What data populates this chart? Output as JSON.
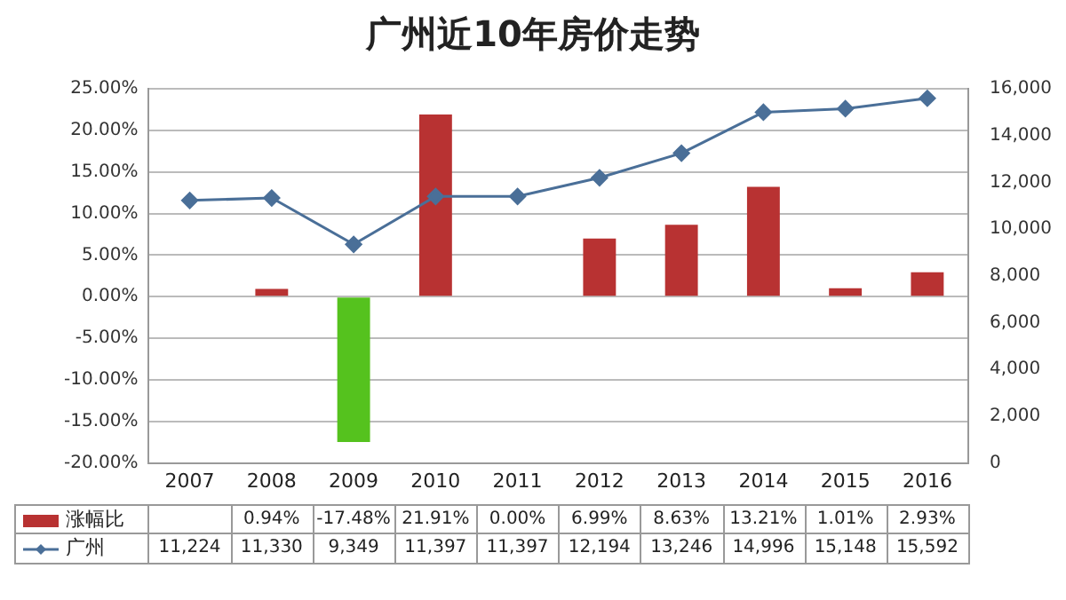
{
  "chart_data": {
    "type": "bar",
    "title": "广州近10年房价走势",
    "categories": [
      "2007",
      "2008",
      "2009",
      "2010",
      "2011",
      "2012",
      "2013",
      "2014",
      "2015",
      "2016"
    ],
    "series": [
      {
        "name": "涨幅比",
        "color": "#b83232",
        "colors": [
          "#b83232",
          "#b83232",
          "#55c21e",
          "#b83232",
          "#b83232",
          "#b83232",
          "#b83232",
          "#b83232",
          "#b83232",
          "#b83232"
        ],
        "values": [
          null,
          0.94,
          -17.48,
          21.91,
          0.0,
          6.99,
          8.63,
          13.21,
          1.01,
          2.93
        ],
        "value_labels": [
          null,
          "0.94%",
          "-17.48%",
          "21.91%",
          "0.00%",
          "6.99%",
          "8.63%",
          "13.21%",
          "1.01%",
          "2.93%"
        ]
      },
      {
        "name": "广州",
        "type": "line",
        "axis": "y2",
        "color": "#4a6f98",
        "values": [
          11224,
          11330,
          9349,
          11397,
          11397,
          12194,
          13246,
          14996,
          15148,
          15592
        ],
        "value_labels": [
          "11,224",
          "11,330",
          "9,349",
          "11,397",
          "11,397",
          "12,194",
          "13,246",
          "14,996",
          "15,148",
          "15,592"
        ]
      }
    ],
    "ylim": [
      -20,
      25
    ],
    "yticks": [
      {
        "value": -20,
        "label": "-20.00%"
      },
      {
        "value": -15,
        "label": "-15.00%"
      },
      {
        "value": -10,
        "label": "-10.00%"
      },
      {
        "value": -5,
        "label": "-5.00%"
      },
      {
        "value": 0,
        "label": "0.00%"
      },
      {
        "value": 5,
        "label": "5.00%"
      },
      {
        "value": 10,
        "label": "10.00%"
      },
      {
        "value": 15,
        "label": "15.00%"
      },
      {
        "value": 20,
        "label": "20.00%"
      },
      {
        "value": 25,
        "label": "25.00%"
      }
    ],
    "y2lim": [
      0,
      16000
    ],
    "y2ticks": [
      0,
      {
        "value": 2000,
        "label": "2,000"
      },
      {
        "value": 4000,
        "label": "4,000"
      },
      {
        "value": 6000,
        "label": "6,000"
      },
      {
        "value": 8000,
        "label": "8,000"
      },
      {
        "value": 10000,
        "label": "10,000"
      },
      {
        "value": 12000,
        "label": "12,000"
      },
      {
        "value": 14000,
        "label": "14,000"
      },
      {
        "value": 16000,
        "label": "16,000"
      }
    ],
    "grid": "y",
    "legend": "bottom left",
    "marker": "diamond",
    "line_style": "solid"
  }
}
